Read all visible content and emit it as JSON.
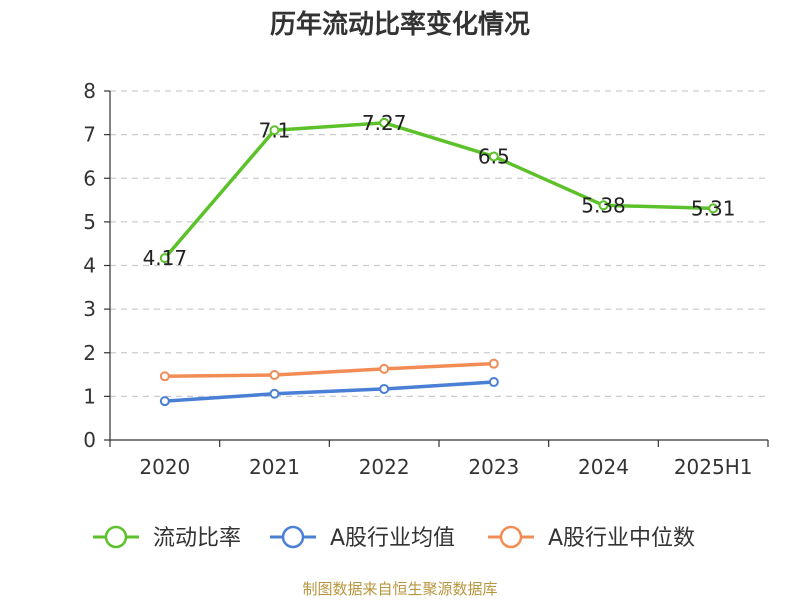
{
  "chart_data": {
    "type": "line",
    "title": "历年流动比率变化情况",
    "categories": [
      "2020",
      "2021",
      "2022",
      "2023",
      "2024",
      "2025H1"
    ],
    "ylim": [
      0,
      8
    ],
    "yticks": [
      0,
      1,
      2,
      3,
      4,
      5,
      6,
      7,
      8
    ],
    "grid": true,
    "legend_position": "bottom",
    "series": [
      {
        "name": "流动比率",
        "color": "#5cc12a",
        "values": [
          4.17,
          7.1,
          7.27,
          6.5,
          5.38,
          5.31
        ],
        "labels": [
          "4.17",
          "7.1",
          "7.27",
          "6.5",
          "5.38",
          "5.31"
        ]
      },
      {
        "name": "A股行业均值",
        "color": "#4a7fd6",
        "values": [
          0.89,
          1.06,
          1.17,
          1.33,
          null,
          null
        ]
      },
      {
        "name": "A股行业中位数",
        "color": "#f28c55",
        "values": [
          1.46,
          1.49,
          1.63,
          1.75,
          null,
          null
        ]
      }
    ]
  },
  "source": "制图数据来自恒生聚源数据库"
}
